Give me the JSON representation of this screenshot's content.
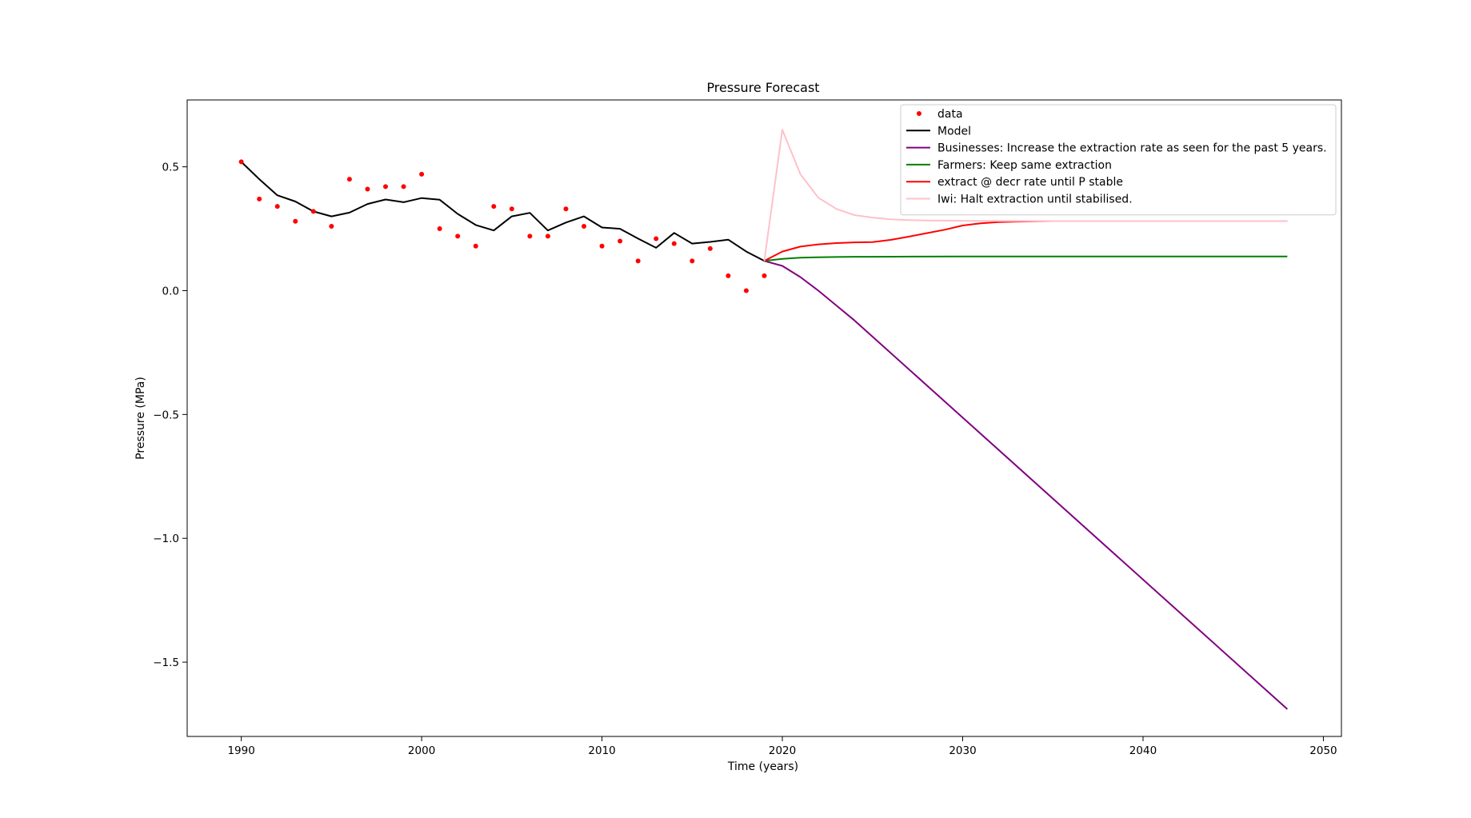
{
  "chart_data": {
    "type": "line",
    "title": "Pressure Forecast",
    "xlabel": "Time (years)",
    "ylabel": "Pressure (MPa)",
    "xlim": [
      1987,
      2051
    ],
    "ylim": [
      -1.8,
      0.77
    ],
    "xticks": [
      1990,
      2000,
      2010,
      2020,
      2030,
      2040,
      2050
    ],
    "xtick_labels": [
      "1990",
      "2000",
      "2010",
      "2020",
      "2030",
      "2040",
      "2050"
    ],
    "yticks": [
      0.5,
      0.0,
      -0.5,
      -1.0,
      -1.5
    ],
    "ytick_labels": [
      "0.5",
      "0.0",
      "−0.5",
      "−1.0",
      "−1.5"
    ],
    "grid": false,
    "legend_position": "top-right",
    "series": [
      {
        "name": "data",
        "kind": "scatter",
        "color": "#ff0000",
        "x": [
          1990,
          1991,
          1992,
          1993,
          1994,
          1995,
          1996,
          1997,
          1998,
          1999,
          2000,
          2001,
          2002,
          2003,
          2004,
          2005,
          2006,
          2007,
          2008,
          2009,
          2010,
          2011,
          2012,
          2013,
          2014,
          2015,
          2016,
          2017,
          2018,
          2019
        ],
        "y": [
          0.52,
          0.37,
          0.34,
          0.28,
          0.32,
          0.26,
          0.45,
          0.41,
          0.42,
          0.42,
          0.47,
          0.25,
          0.22,
          0.18,
          0.34,
          0.33,
          0.22,
          0.22,
          0.33,
          0.26,
          0.18,
          0.2,
          0.12,
          0.21,
          0.19,
          0.12,
          0.17,
          0.06,
          0.0,
          0.06
        ]
      },
      {
        "name": "Model",
        "kind": "line",
        "color": "#000000",
        "x": [
          1990,
          1991,
          1992,
          1993,
          1994,
          1995,
          1996,
          1997,
          1998,
          1999,
          2000,
          2001,
          2002,
          2003,
          2004,
          2005,
          2006,
          2007,
          2008,
          2009,
          2010,
          2011,
          2012,
          2013,
          2014,
          2015,
          2016,
          2017,
          2018,
          2019
        ],
        "y": [
          0.52,
          0.45,
          0.385,
          0.36,
          0.32,
          0.3,
          0.315,
          0.35,
          0.368,
          0.357,
          0.374,
          0.367,
          0.31,
          0.265,
          0.243,
          0.3,
          0.314,
          0.243,
          0.275,
          0.3,
          0.255,
          0.25,
          0.21,
          0.173,
          0.233,
          0.19,
          0.197,
          0.206,
          0.158,
          0.12
        ]
      },
      {
        "name": "Businesses: Increase the extraction rate as seen for the past 5 years.",
        "kind": "line",
        "color": "#800080",
        "x": [
          2019,
          2020,
          2021,
          2022,
          2023,
          2024,
          2048
        ],
        "y": [
          0.12,
          0.1,
          0.055,
          0.0,
          -0.06,
          -0.12,
          -1.69
        ]
      },
      {
        "name": "Farmers: Keep same extraction",
        "kind": "line",
        "color": "#008000",
        "x": [
          2019,
          2020,
          2021,
          2022,
          2023,
          2024,
          2025,
          2030,
          2048
        ],
        "y": [
          0.12,
          0.128,
          0.133,
          0.135,
          0.136,
          0.137,
          0.137,
          0.138,
          0.138
        ]
      },
      {
        "name": "extract @ decr rate until P stable",
        "kind": "line",
        "color": "#ff0000",
        "x": [
          2019,
          2020,
          2021,
          2022,
          2023,
          2024,
          2025,
          2026,
          2027,
          2028,
          2029,
          2030,
          2031,
          2032,
          2033,
          2034,
          2035,
          2048
        ],
        "y": [
          0.12,
          0.158,
          0.178,
          0.187,
          0.192,
          0.195,
          0.196,
          0.205,
          0.218,
          0.232,
          0.246,
          0.263,
          0.272,
          0.277,
          0.279,
          0.28,
          0.281,
          0.281
        ]
      },
      {
        "name": "Iwi: Halt extraction until stabilised.",
        "kind": "line",
        "color": "#ffc0cb",
        "x": [
          2019,
          2020,
          2021,
          2022,
          2023,
          2024,
          2025,
          2026,
          2027,
          2028,
          2030,
          2035,
          2048
        ],
        "y": [
          0.12,
          0.65,
          0.47,
          0.375,
          0.33,
          0.305,
          0.295,
          0.288,
          0.285,
          0.283,
          0.282,
          0.281,
          0.281
        ]
      }
    ]
  }
}
